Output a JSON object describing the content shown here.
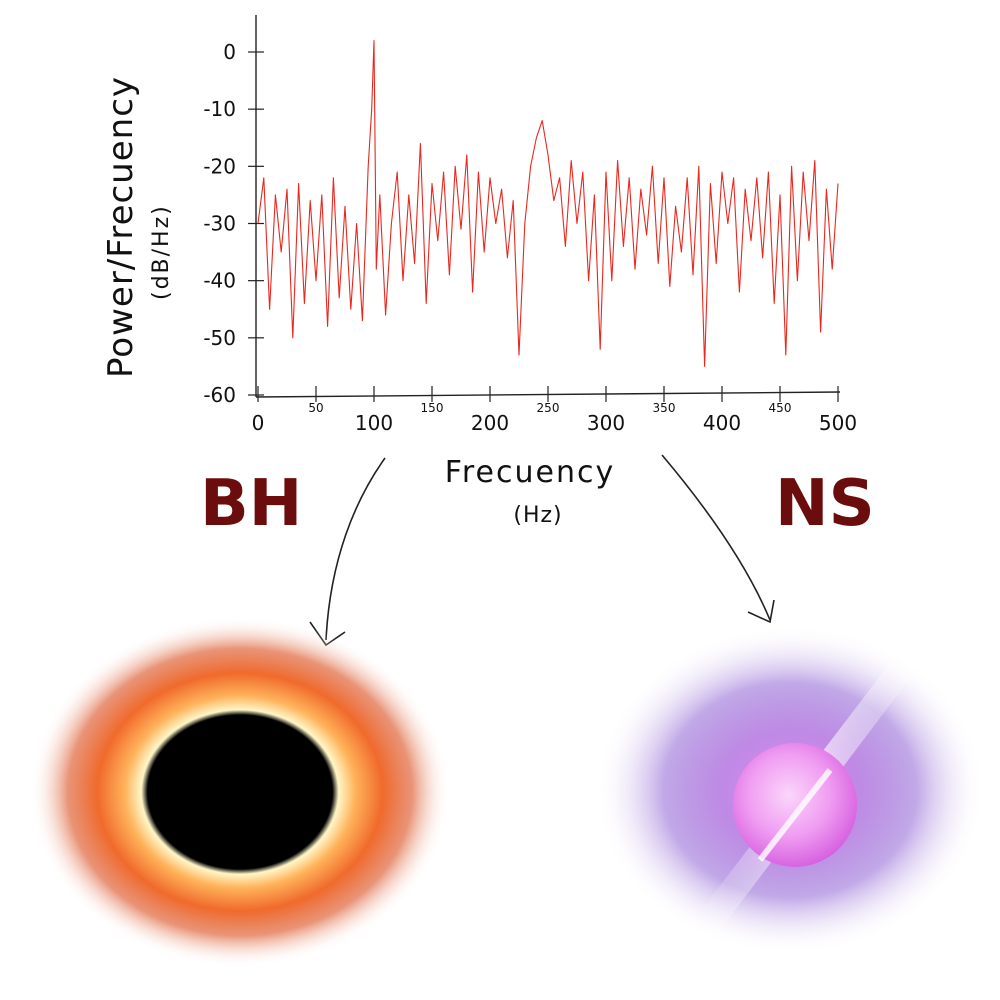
{
  "chart_data": {
    "type": "line",
    "title": "",
    "xlabel": "Frecuency",
    "xlabel_unit": "(Hz)",
    "ylabel": "Power/Frecuency",
    "ylabel_unit": "(dB/Hz)",
    "xlim": [
      0,
      500
    ],
    "ylim": [
      -60,
      0
    ],
    "x_ticks_major": [
      "0",
      "100",
      "200",
      "300",
      "400",
      "500"
    ],
    "x_ticks_minor": [
      "50",
      "150",
      "250",
      "350",
      "450"
    ],
    "y_ticks": [
      "0",
      "-10",
      "-20",
      "-30",
      "-40",
      "-50",
      "-60"
    ],
    "grid": false,
    "series": [
      {
        "color": "#e8281e",
        "x": [
          0,
          5,
          10,
          15,
          20,
          25,
          30,
          35,
          40,
          45,
          50,
          55,
          60,
          65,
          70,
          75,
          80,
          85,
          90,
          95,
          98,
          100,
          102,
          105,
          110,
          115,
          120,
          125,
          130,
          135,
          140,
          145,
          150,
          155,
          160,
          165,
          170,
          175,
          180,
          185,
          190,
          195,
          200,
          205,
          210,
          215,
          220,
          225,
          230,
          235,
          240,
          245,
          250,
          255,
          260,
          265,
          270,
          275,
          280,
          285,
          290,
          295,
          300,
          305,
          310,
          315,
          320,
          325,
          330,
          335,
          340,
          345,
          350,
          355,
          360,
          365,
          370,
          375,
          380,
          385,
          390,
          395,
          400,
          405,
          410,
          415,
          420,
          425,
          430,
          435,
          440,
          445,
          450,
          455,
          460,
          465,
          470,
          475,
          480,
          485,
          490,
          495,
          500
        ],
        "y": [
          -30,
          -22,
          -45,
          -25,
          -35,
          -24,
          -50,
          -23,
          -44,
          -26,
          -40,
          -25,
          -48,
          -22,
          -43,
          -27,
          -45,
          -30,
          -47,
          -20,
          -10,
          2,
          -38,
          -25,
          -46,
          -30,
          -21,
          -40,
          -25,
          -37,
          -16,
          -44,
          -23,
          -33,
          -21,
          -39,
          -20,
          -31,
          -18,
          -42,
          -21,
          -35,
          -22,
          -30,
          -24,
          -36,
          -26,
          -53,
          -30,
          -20,
          -15,
          -12,
          -18,
          -26,
          -22,
          -34,
          -19,
          -30,
          -21,
          -40,
          -25,
          -52,
          -21,
          -40,
          -19,
          -34,
          -22,
          -38,
          -24,
          -32,
          -20,
          -37,
          -22,
          -41,
          -27,
          -35,
          -22,
          -39,
          -20,
          -55,
          -23,
          -37,
          -21,
          -30,
          -22,
          -42,
          -24,
          -33,
          -22,
          -36,
          -21,
          -44,
          -25,
          -53,
          -20,
          -40,
          -21,
          -33,
          -19,
          -49,
          -24,
          -38,
          -23
        ]
      }
    ]
  },
  "labels": {
    "bh": "BH",
    "ns": "NS"
  },
  "colors": {
    "signal": "#e8281e",
    "label": "#6b0d0d"
  }
}
